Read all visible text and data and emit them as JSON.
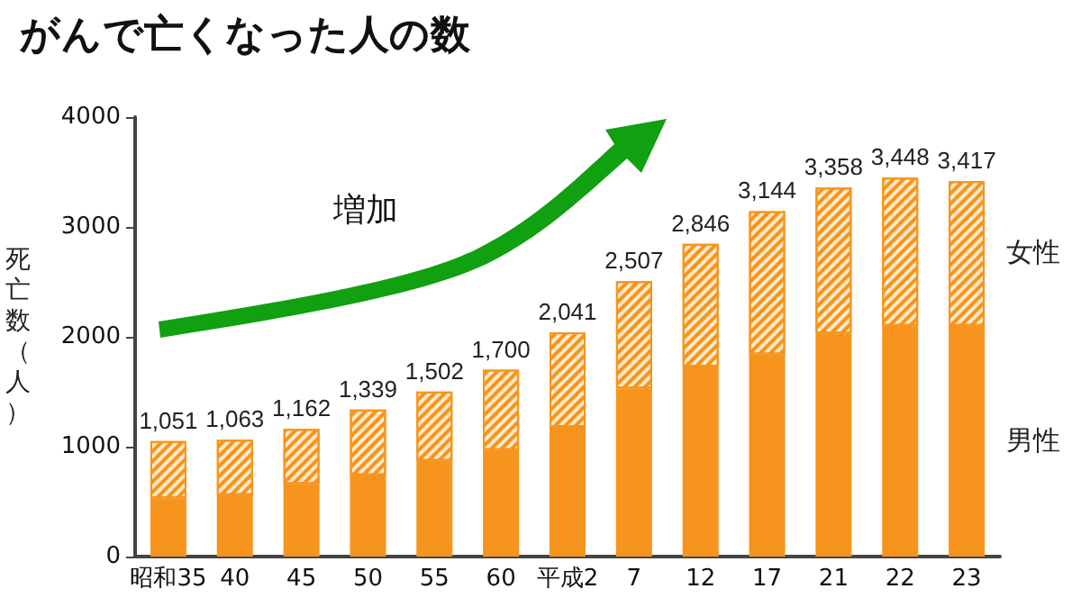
{
  "chart_data": {
    "type": "bar",
    "title": "がんで亡くなった人の数",
    "ylabel": "死亡数（人）",
    "categories": [
      "昭和35",
      "40",
      "45",
      "50",
      "55",
      "60",
      "平成2",
      "7",
      "12",
      "17",
      "21",
      "22",
      "23"
    ],
    "stacked": true,
    "series": [
      {
        "name": "男性",
        "color": "#f7941d",
        "values": [
          530,
          560,
          660,
          740,
          870,
          970,
          1180,
          1530,
          1730,
          1840,
          2030,
          2100,
          2100
        ]
      },
      {
        "name": "女性",
        "color": "#f7941d",
        "values": [
          521,
          503,
          502,
          599,
          632,
          730,
          861,
          977,
          1116,
          1304,
          1328,
          1348,
          1317
        ]
      }
    ],
    "totals": [
      "1,051",
      "1,063",
      "1,162",
      "1,339",
      "1,502",
      "1,700",
      "2,041",
      "2,507",
      "2,846",
      "3,144",
      "3,358",
      "3,448",
      "3,417"
    ],
    "ylim": [
      0,
      4000
    ],
    "yticks": [
      0,
      1000,
      2000,
      3000,
      4000
    ],
    "grid": false,
    "legend": false,
    "annotations": [
      "増加"
    ]
  }
}
